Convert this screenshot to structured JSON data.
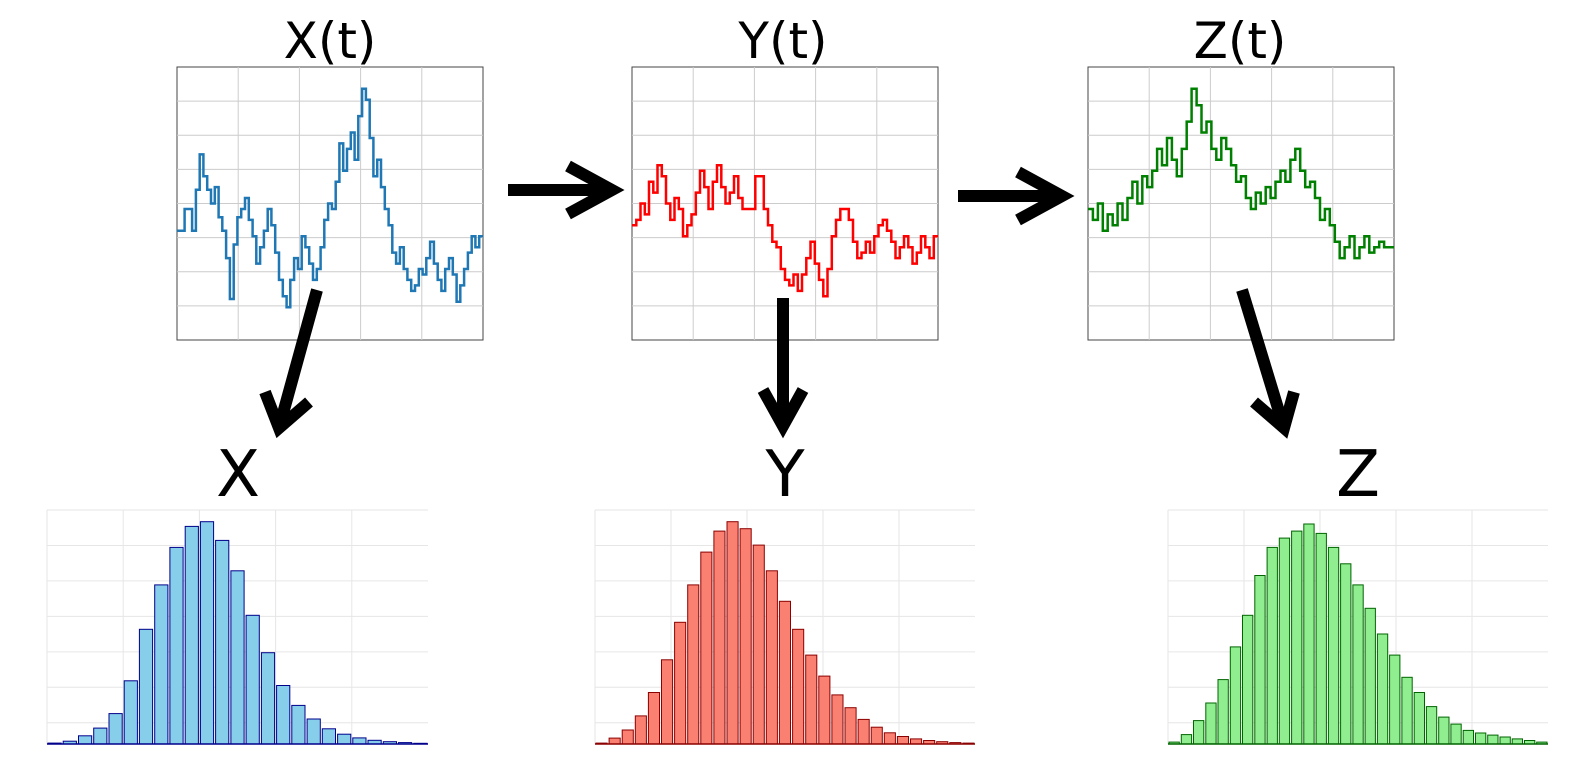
{
  "processes": [
    {
      "title": "X(t)",
      "marginal_label": "X",
      "line_color": "#1f77b4",
      "bar_fill": "#87ceeb",
      "bar_edge": "#00008b",
      "series": [
        0.4,
        0.4,
        0.48,
        0.48,
        0.4,
        0.55,
        0.68,
        0.6,
        0.55,
        0.5,
        0.56,
        0.45,
        0.4,
        0.3,
        0.15,
        0.35,
        0.45,
        0.48,
        0.52,
        0.44,
        0.38,
        0.28,
        0.34,
        0.4,
        0.48,
        0.42,
        0.32,
        0.22,
        0.16,
        0.12,
        0.22,
        0.3,
        0.26,
        0.38,
        0.34,
        0.28,
        0.22,
        0.26,
        0.34,
        0.44,
        0.5,
        0.48,
        0.58,
        0.72,
        0.62,
        0.7,
        0.76,
        0.66,
        0.82,
        0.92,
        0.88,
        0.74,
        0.6,
        0.66,
        0.56,
        0.48,
        0.42,
        0.32,
        0.28,
        0.34,
        0.26,
        0.22,
        0.18,
        0.2,
        0.26,
        0.24,
        0.3,
        0.36,
        0.28,
        0.22,
        0.18,
        0.26,
        0.3,
        0.24,
        0.14,
        0.2,
        0.26,
        0.32,
        0.38,
        0.34,
        0.38
      ],
      "histogram": [
        0.004,
        0.012,
        0.035,
        0.068,
        0.13,
        0.27,
        0.49,
        0.68,
        0.84,
        0.93,
        0.95,
        0.87,
        0.74,
        0.55,
        0.39,
        0.25,
        0.165,
        0.107,
        0.065,
        0.042,
        0.026,
        0.016,
        0.01,
        0.006,
        0.003
      ]
    },
    {
      "title": "Y(t)",
      "marginal_label": "Y",
      "line_color": "#ff0000",
      "bar_fill": "#fa8072",
      "bar_edge": "#8b0000",
      "series": [
        0.42,
        0.44,
        0.5,
        0.46,
        0.58,
        0.54,
        0.64,
        0.6,
        0.5,
        0.44,
        0.52,
        0.48,
        0.38,
        0.42,
        0.46,
        0.54,
        0.62,
        0.56,
        0.48,
        0.58,
        0.64,
        0.56,
        0.5,
        0.54,
        0.6,
        0.52,
        0.48,
        0.48,
        0.48,
        0.6,
        0.6,
        0.48,
        0.42,
        0.36,
        0.34,
        0.26,
        0.22,
        0.2,
        0.24,
        0.18,
        0.24,
        0.3,
        0.36,
        0.28,
        0.22,
        0.16,
        0.26,
        0.38,
        0.44,
        0.48,
        0.48,
        0.44,
        0.36,
        0.3,
        0.32,
        0.36,
        0.32,
        0.38,
        0.42,
        0.44,
        0.4,
        0.36,
        0.3,
        0.34,
        0.38,
        0.34,
        0.28,
        0.32,
        0.38,
        0.34,
        0.3,
        0.38
      ],
      "histogram": [
        0.004,
        0.025,
        0.06,
        0.12,
        0.22,
        0.36,
        0.52,
        0.68,
        0.82,
        0.91,
        0.95,
        0.92,
        0.85,
        0.74,
        0.61,
        0.49,
        0.38,
        0.29,
        0.21,
        0.155,
        0.105,
        0.072,
        0.048,
        0.032,
        0.022,
        0.015,
        0.01,
        0.006,
        0.004
      ]
    },
    {
      "title": "Z(t)",
      "marginal_label": "Z",
      "line_color": "#008000",
      "bar_fill": "#90ee90",
      "bar_edge": "#006400",
      "series": [
        0.48,
        0.44,
        0.5,
        0.4,
        0.46,
        0.42,
        0.5,
        0.44,
        0.52,
        0.58,
        0.5,
        0.6,
        0.56,
        0.62,
        0.7,
        0.64,
        0.74,
        0.66,
        0.6,
        0.7,
        0.8,
        0.92,
        0.86,
        0.76,
        0.8,
        0.7,
        0.66,
        0.74,
        0.7,
        0.64,
        0.58,
        0.6,
        0.52,
        0.48,
        0.54,
        0.5,
        0.56,
        0.52,
        0.58,
        0.62,
        0.58,
        0.66,
        0.7,
        0.62,
        0.56,
        0.58,
        0.52,
        0.44,
        0.48,
        0.42,
        0.36,
        0.3,
        0.34,
        0.38,
        0.3,
        0.34,
        0.38,
        0.32,
        0.34,
        0.36,
        0.34,
        0.34
      ],
      "histogram": [
        0.008,
        0.04,
        0.1,
        0.175,
        0.275,
        0.415,
        0.55,
        0.72,
        0.84,
        0.88,
        0.91,
        0.94,
        0.9,
        0.84,
        0.77,
        0.68,
        0.58,
        0.47,
        0.38,
        0.285,
        0.22,
        0.16,
        0.115,
        0.085,
        0.058,
        0.047,
        0.038,
        0.03,
        0.022,
        0.015,
        0.008
      ]
    }
  ],
  "arrow_color": "#000000"
}
